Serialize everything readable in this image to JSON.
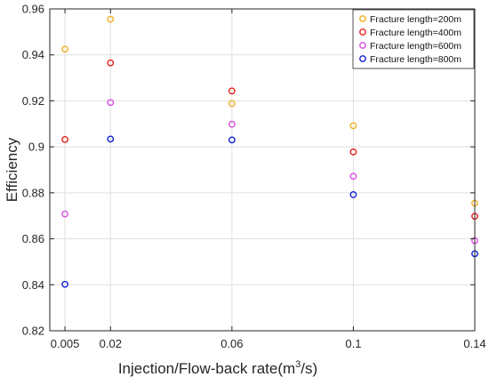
{
  "chart_data": {
    "type": "scatter",
    "x": [
      0.005,
      0.02,
      0.06,
      0.1,
      0.14
    ],
    "xticks": [
      "0.005",
      "0.02",
      "0.06",
      "0.1",
      "0.14"
    ],
    "xlim": [
      0,
      0.14
    ],
    "ylim": [
      0.82,
      0.96
    ],
    "yticks": [
      "0.82",
      "0.84",
      "0.86",
      "0.88",
      "0.9",
      "0.92",
      "0.94",
      "0.96"
    ],
    "xlabel": {
      "pre": "Injection/Flow-back rate(m",
      "sup": "3",
      "post": "/s)"
    },
    "ylabel": "Efficiency",
    "grid": true,
    "legend_position": "top-right",
    "series": [
      {
        "name": "Fracture length=200m",
        "color": "#EDB120",
        "values": [
          0.9425,
          0.9555,
          0.9188,
          0.9092,
          0.8755
        ]
      },
      {
        "name": "Fracture length=400m",
        "color": "#E3201B",
        "values": [
          0.9032,
          0.9365,
          0.9243,
          0.8978,
          0.8698
        ]
      },
      {
        "name": "Fracture length=600m",
        "color": "#D94FE0",
        "values": [
          0.8708,
          0.9193,
          0.9098,
          0.8872,
          0.8592
        ]
      },
      {
        "name": "Fracture length=800m",
        "color": "#1221D6",
        "values": [
          0.8402,
          0.9034,
          0.903,
          0.8792,
          0.8535
        ]
      }
    ]
  }
}
